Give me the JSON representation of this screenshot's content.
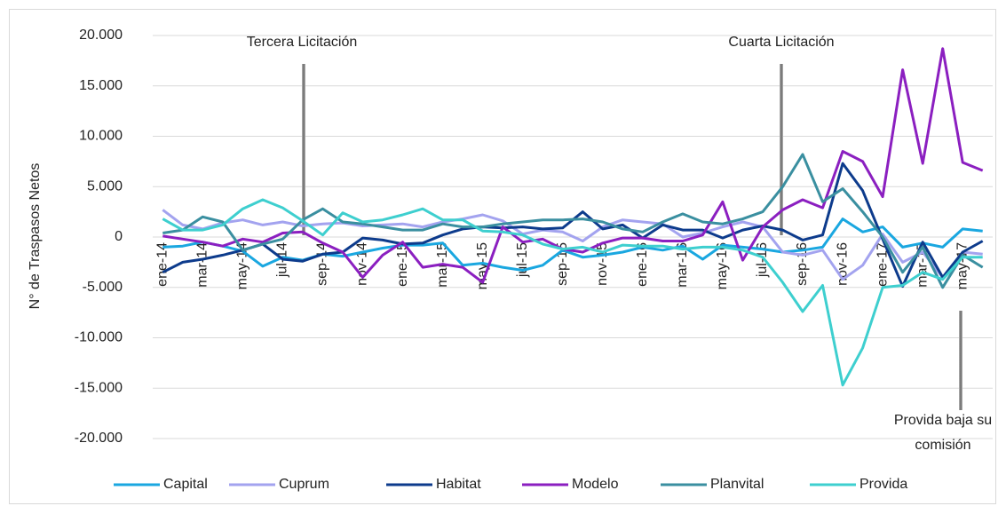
{
  "chart_data": {
    "type": "line",
    "ylabel": "N° de Traspasos Netos",
    "categories": [
      "ene-14",
      null,
      "mar-14",
      null,
      "may-14",
      null,
      "jul-14",
      null,
      "sep-14",
      null,
      "nov-14",
      null,
      "ene-15",
      null,
      "mar-15",
      null,
      "may-15",
      null,
      "jul-15",
      null,
      "sep-15",
      null,
      "nov-15",
      null,
      "ene-16",
      null,
      "mar-16",
      null,
      "may-16",
      null,
      "jul-16",
      null,
      "sep-16",
      null,
      "nov-16",
      null,
      "ene-17",
      null,
      "mar-17",
      null,
      "may-17",
      null
    ],
    "ylim": [
      -20000,
      20000
    ],
    "yticks": [
      {
        "value": 20000,
        "label": "20.000"
      },
      {
        "value": 15000,
        "label": "15.000"
      },
      {
        "value": 10000,
        "label": "10.000"
      },
      {
        "value": 5000,
        "label": "5.000"
      },
      0,
      {
        "value": -5000,
        "label": "-5.000"
      },
      {
        "value": -10000,
        "label": "-10.000"
      },
      {
        "value": -15000,
        "label": "-15.000"
      },
      {
        "value": -20000,
        "label": "-20.000"
      }
    ],
    "grid": true,
    "legend": "bottom",
    "series": [
      {
        "name": "Capital",
        "color": "#1aa7e0",
        "values": [
          -1000,
          -900,
          -500,
          -900,
          -1400,
          -2900,
          -2000,
          -2300,
          -1700,
          -1900,
          -1500,
          -1100,
          -800,
          -800,
          -600,
          -2800,
          -2600,
          -3000,
          -3300,
          -2800,
          -1300,
          -2000,
          -1800,
          -1500,
          -1000,
          -1300,
          -900,
          -2200,
          -800,
          -1000,
          -1200,
          -1500,
          -1300,
          -1000,
          1800,
          500,
          1000,
          -1000,
          -600,
          -1000,
          800,
          600
        ]
      },
      {
        "name": "Cuprum",
        "color": "#a3a3ef",
        "values": [
          2700,
          1200,
          800,
          1400,
          1700,
          1200,
          1500,
          1100,
          1300,
          1400,
          1100,
          1200,
          1300,
          1000,
          1500,
          1800,
          2200,
          1600,
          300,
          700,
          500,
          -400,
          1000,
          1700,
          1500,
          1300,
          0,
          400,
          1000,
          1500,
          1000,
          -1500,
          -1800,
          -1300,
          -4200,
          -2800,
          300,
          -2500,
          -1500,
          -4000,
          -1500,
          -1700
        ]
      },
      {
        "name": "Habitat",
        "color": "#0d3b8c",
        "values": [
          -3500,
          -2500,
          -2200,
          -1800,
          -1300,
          -700,
          -2200,
          -2400,
          -1700,
          -1500,
          -100,
          -300,
          -700,
          -600,
          200,
          800,
          1000,
          900,
          1000,
          800,
          900,
          2500,
          800,
          1200,
          -100,
          1200,
          700,
          700,
          -100,
          700,
          1100,
          700,
          -300,
          200,
          7300,
          4600,
          -200,
          -4900,
          -500,
          -4000,
          -1500,
          -400
        ]
      },
      {
        "name": "Modelo",
        "color": "#8b1fc0",
        "values": [
          100,
          -200,
          -500,
          -900,
          -200,
          -500,
          400,
          500,
          -600,
          -1500,
          -4000,
          -1800,
          -500,
          -3000,
          -2700,
          -3000,
          -4500,
          1000,
          -500,
          -200,
          -1200,
          -1500,
          -600,
          -100,
          -100,
          -400,
          -400,
          200,
          3500,
          -2300,
          1000,
          2700,
          3700,
          2900,
          8500,
          7500,
          4000,
          16600,
          7300,
          18700,
          7400,
          6600
        ]
      },
      {
        "name": "Planvital",
        "color": "#3a8fa0",
        "values": [
          400,
          700,
          2000,
          1500,
          -1300,
          -700,
          -200,
          1700,
          2800,
          1500,
          1300,
          1000,
          700,
          700,
          1300,
          1000,
          1000,
          1300,
          1500,
          1700,
          1700,
          1800,
          1500,
          800,
          500,
          1500,
          2300,
          1500,
          1300,
          1800,
          2500,
          5000,
          8200,
          3500,
          4800,
          2500,
          0,
          -3500,
          -1000,
          -5000,
          -1800,
          -3000
        ]
      },
      {
        "name": "Provida",
        "color": "#3ecfcf",
        "values": [
          1800,
          700,
          700,
          1200,
          2800,
          3700,
          2900,
          1600,
          200,
          2400,
          1500,
          1700,
          2200,
          2800,
          1700,
          1700,
          600,
          500,
          200,
          -700,
          -1200,
          -1000,
          -1500,
          -800,
          -900,
          -900,
          -1200,
          -1000,
          -1000,
          -1300,
          -2000,
          -4500,
          -7400,
          -4800,
          -14700,
          -11000,
          -5000,
          -4800,
          -3500,
          -4200,
          -2000,
          -2000
        ]
      }
    ],
    "annotations": [
      {
        "lines": [
          "Tercera Licitación"
        ]
      },
      {
        "lines": [
          "Cuarta Licitación"
        ]
      },
      {
        "lines": [
          "Provida baja su",
          "comisión"
        ]
      }
    ]
  }
}
